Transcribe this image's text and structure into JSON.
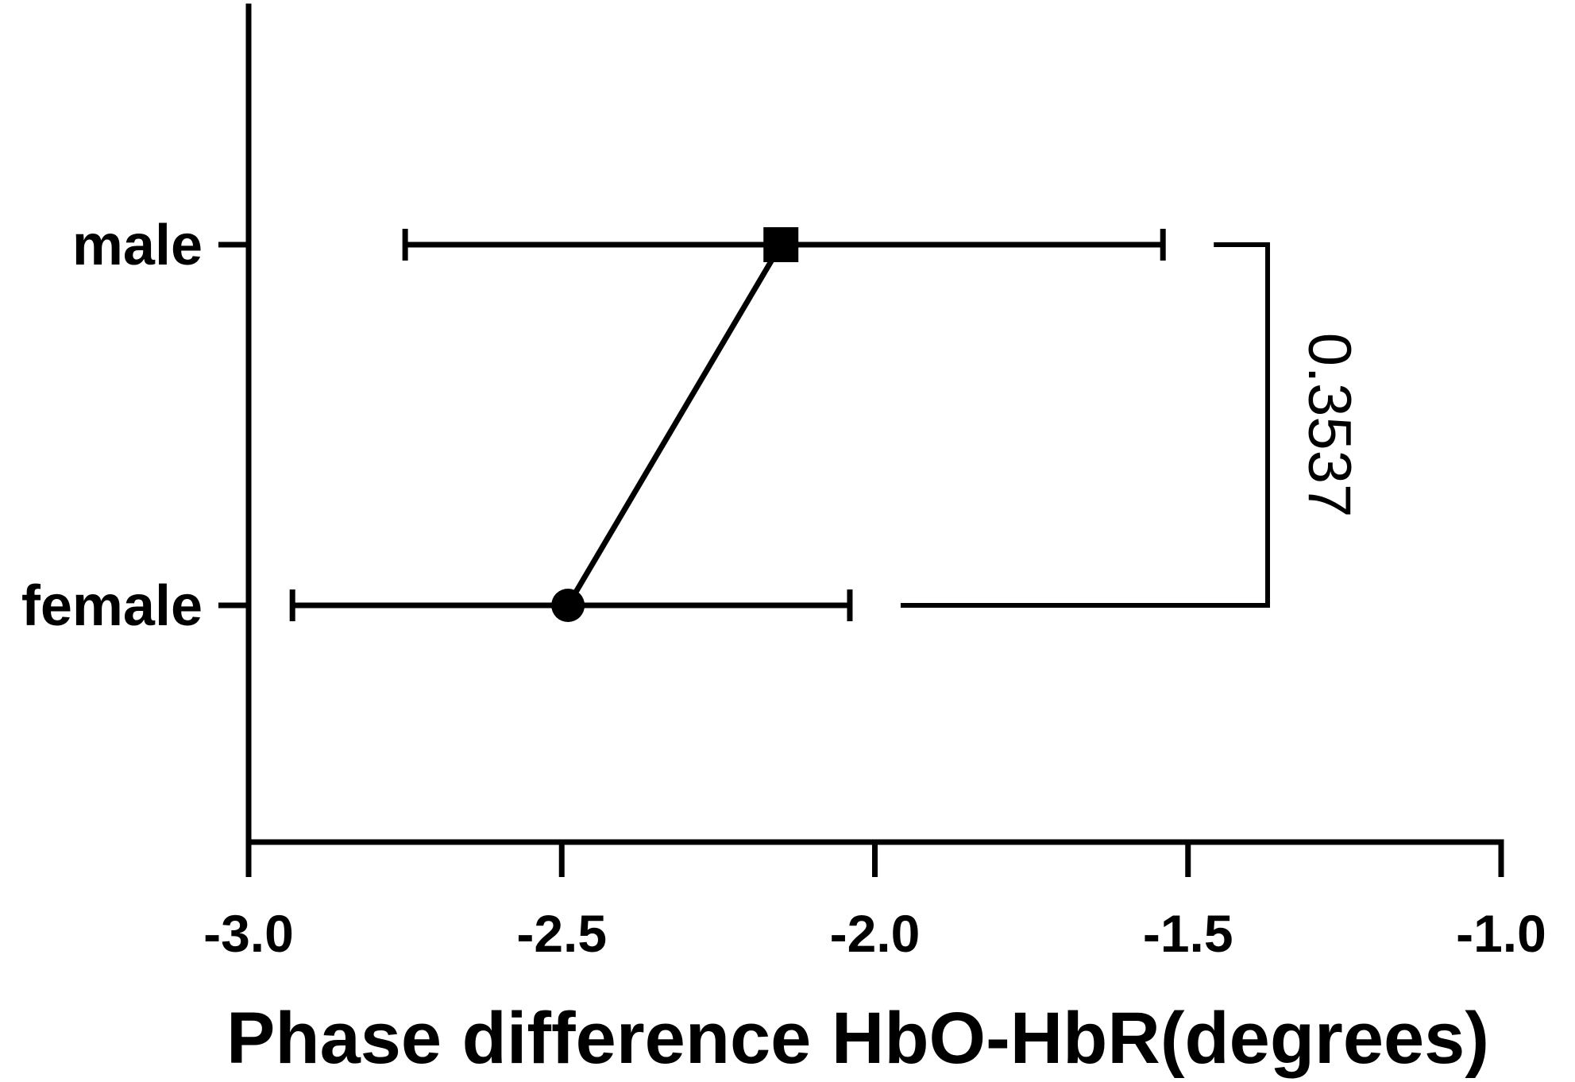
{
  "chart_data": {
    "type": "scatter",
    "title": "",
    "xlabel": "Phase difference HbO-HbR(degrees)",
    "ylabel": "",
    "xlim": [
      -3.0,
      -1.0
    ],
    "xticks": [
      "-3.0",
      "-2.5",
      "-2.0",
      "-1.5",
      "-1.0"
    ],
    "xtick_values": [
      -3.0,
      -2.5,
      -2.0,
      -1.5,
      -1.0
    ],
    "categories": [
      "male",
      "female"
    ],
    "points": [
      {
        "category": "male",
        "mean": -2.15,
        "lower": -2.75,
        "upper": -1.54,
        "marker": "square"
      },
      {
        "category": "female",
        "mean": -2.49,
        "lower": -2.93,
        "upper": -2.04,
        "marker": "circle"
      }
    ],
    "connecting_line": true,
    "comparison": {
      "from": "male",
      "to": "female",
      "label": "0.3537"
    },
    "grid": false,
    "legend": "none"
  }
}
